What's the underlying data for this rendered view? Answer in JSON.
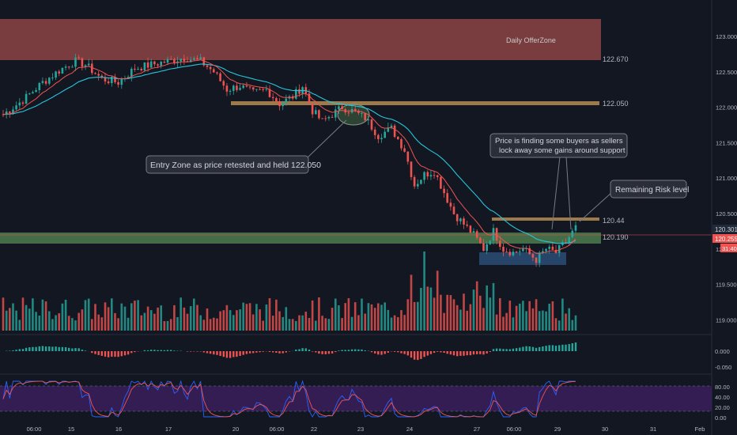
{
  "colors": {
    "background": "#131722",
    "bull": "#26a69a",
    "bear": "#ef5350",
    "ema_fast": "#ef5350",
    "ema_slow": "#26c6da",
    "offer_zone": "#9c4a4a",
    "demand_zone": "#4e7d4e",
    "resistance_line": "#9c7a4b",
    "blue_zone": "#2a4a70",
    "stoch_band": "#3b1f5c",
    "annotation_bg": "#2a2e39",
    "price_line": "#ef5350"
  },
  "chart_data": {
    "type": "candlestick",
    "instrument_hint": "FX pair, 15-minute style candles over ~two weeks",
    "price_axis": {
      "ylim": [
        118.8,
        123.1
      ],
      "ticks": [
        "123.000",
        "122.500",
        "122.000",
        "121.500",
        "121.000",
        "120.500",
        "120.000",
        "119.500",
        "119.000"
      ]
    },
    "time_axis": {
      "ticks": [
        "06:00",
        "15",
        "16",
        "17",
        "20",
        "06:00",
        "22",
        "23",
        "24",
        "27",
        "06:00",
        "29",
        "30",
        "31",
        "Feb"
      ]
    },
    "zones": [
      {
        "name": "offer-zone",
        "label": "Daily OfferZone",
        "top": 123.2,
        "bottom": 122.67,
        "price_label": "122.670"
      },
      {
        "name": "demand-zone",
        "label": "",
        "top": 120.19,
        "bottom": 120.05,
        "price_label": "120.190"
      },
      {
        "name": "buyers-zone",
        "label": "",
        "top": 119.85,
        "bottom": 119.72,
        "price_label": ""
      }
    ],
    "levels": [
      {
        "name": "level-122050",
        "value": 122.05,
        "price_label": "122.050"
      },
      {
        "name": "level-12044",
        "value": 120.44,
        "price_label": "120.44"
      }
    ],
    "price_tags": {
      "last_close": "120.301",
      "bid": "120.255",
      "countdown": "31:40"
    },
    "annotations": [
      {
        "name": "entry-zone-note",
        "text": "Entry Zone as price retested and held 122.050"
      },
      {
        "name": "buyers-note",
        "line1": "Price is finding some buyers as sellers",
        "line2": "lock away some gains around support"
      },
      {
        "name": "risk-note",
        "text": "Remaining Risk level"
      }
    ],
    "macd": {
      "ticks": [
        "0.000",
        "-0.050"
      ]
    },
    "stochastic": {
      "ticks": [
        "80.00",
        "40.00",
        "20.00",
        "0.00"
      ]
    },
    "close_path": [
      [
        0,
        121.9
      ],
      [
        6,
        122.1
      ],
      [
        12,
        122.35
      ],
      [
        18,
        122.55
      ],
      [
        22,
        122.65
      ],
      [
        25,
        122.6
      ],
      [
        30,
        122.4
      ],
      [
        35,
        122.35
      ],
      [
        40,
        122.55
      ],
      [
        45,
        122.6
      ],
      [
        50,
        122.65
      ],
      [
        55,
        122.7
      ],
      [
        60,
        122.65
      ],
      [
        64,
        122.5
      ],
      [
        68,
        122.25
      ],
      [
        72,
        122.3
      ],
      [
        76,
        122.2
      ],
      [
        80,
        122.25
      ],
      [
        84,
        122.05
      ],
      [
        88,
        122.15
      ],
      [
        91,
        122.3
      ],
      [
        94,
        121.95
      ],
      [
        97,
        121.8
      ],
      [
        100,
        121.9
      ],
      [
        103,
        122.0
      ],
      [
        106,
        121.95
      ],
      [
        110,
        121.85
      ],
      [
        114,
        121.6
      ],
      [
        118,
        121.7
      ],
      [
        122,
        121.4
      ],
      [
        125,
        120.9
      ],
      [
        128,
        121.05
      ],
      [
        131,
        121.1
      ],
      [
        134,
        120.8
      ],
      [
        137,
        120.5
      ],
      [
        140,
        120.35
      ],
      [
        143,
        120.2
      ],
      [
        146,
        120.0
      ],
      [
        149,
        120.25
      ],
      [
        152,
        120.0
      ],
      [
        155,
        119.95
      ],
      [
        158,
        120.0
      ],
      [
        162,
        119.85
      ],
      [
        165,
        120.0
      ],
      [
        168,
        119.95
      ],
      [
        171,
        120.1
      ],
      [
        174,
        120.3
      ]
    ]
  }
}
